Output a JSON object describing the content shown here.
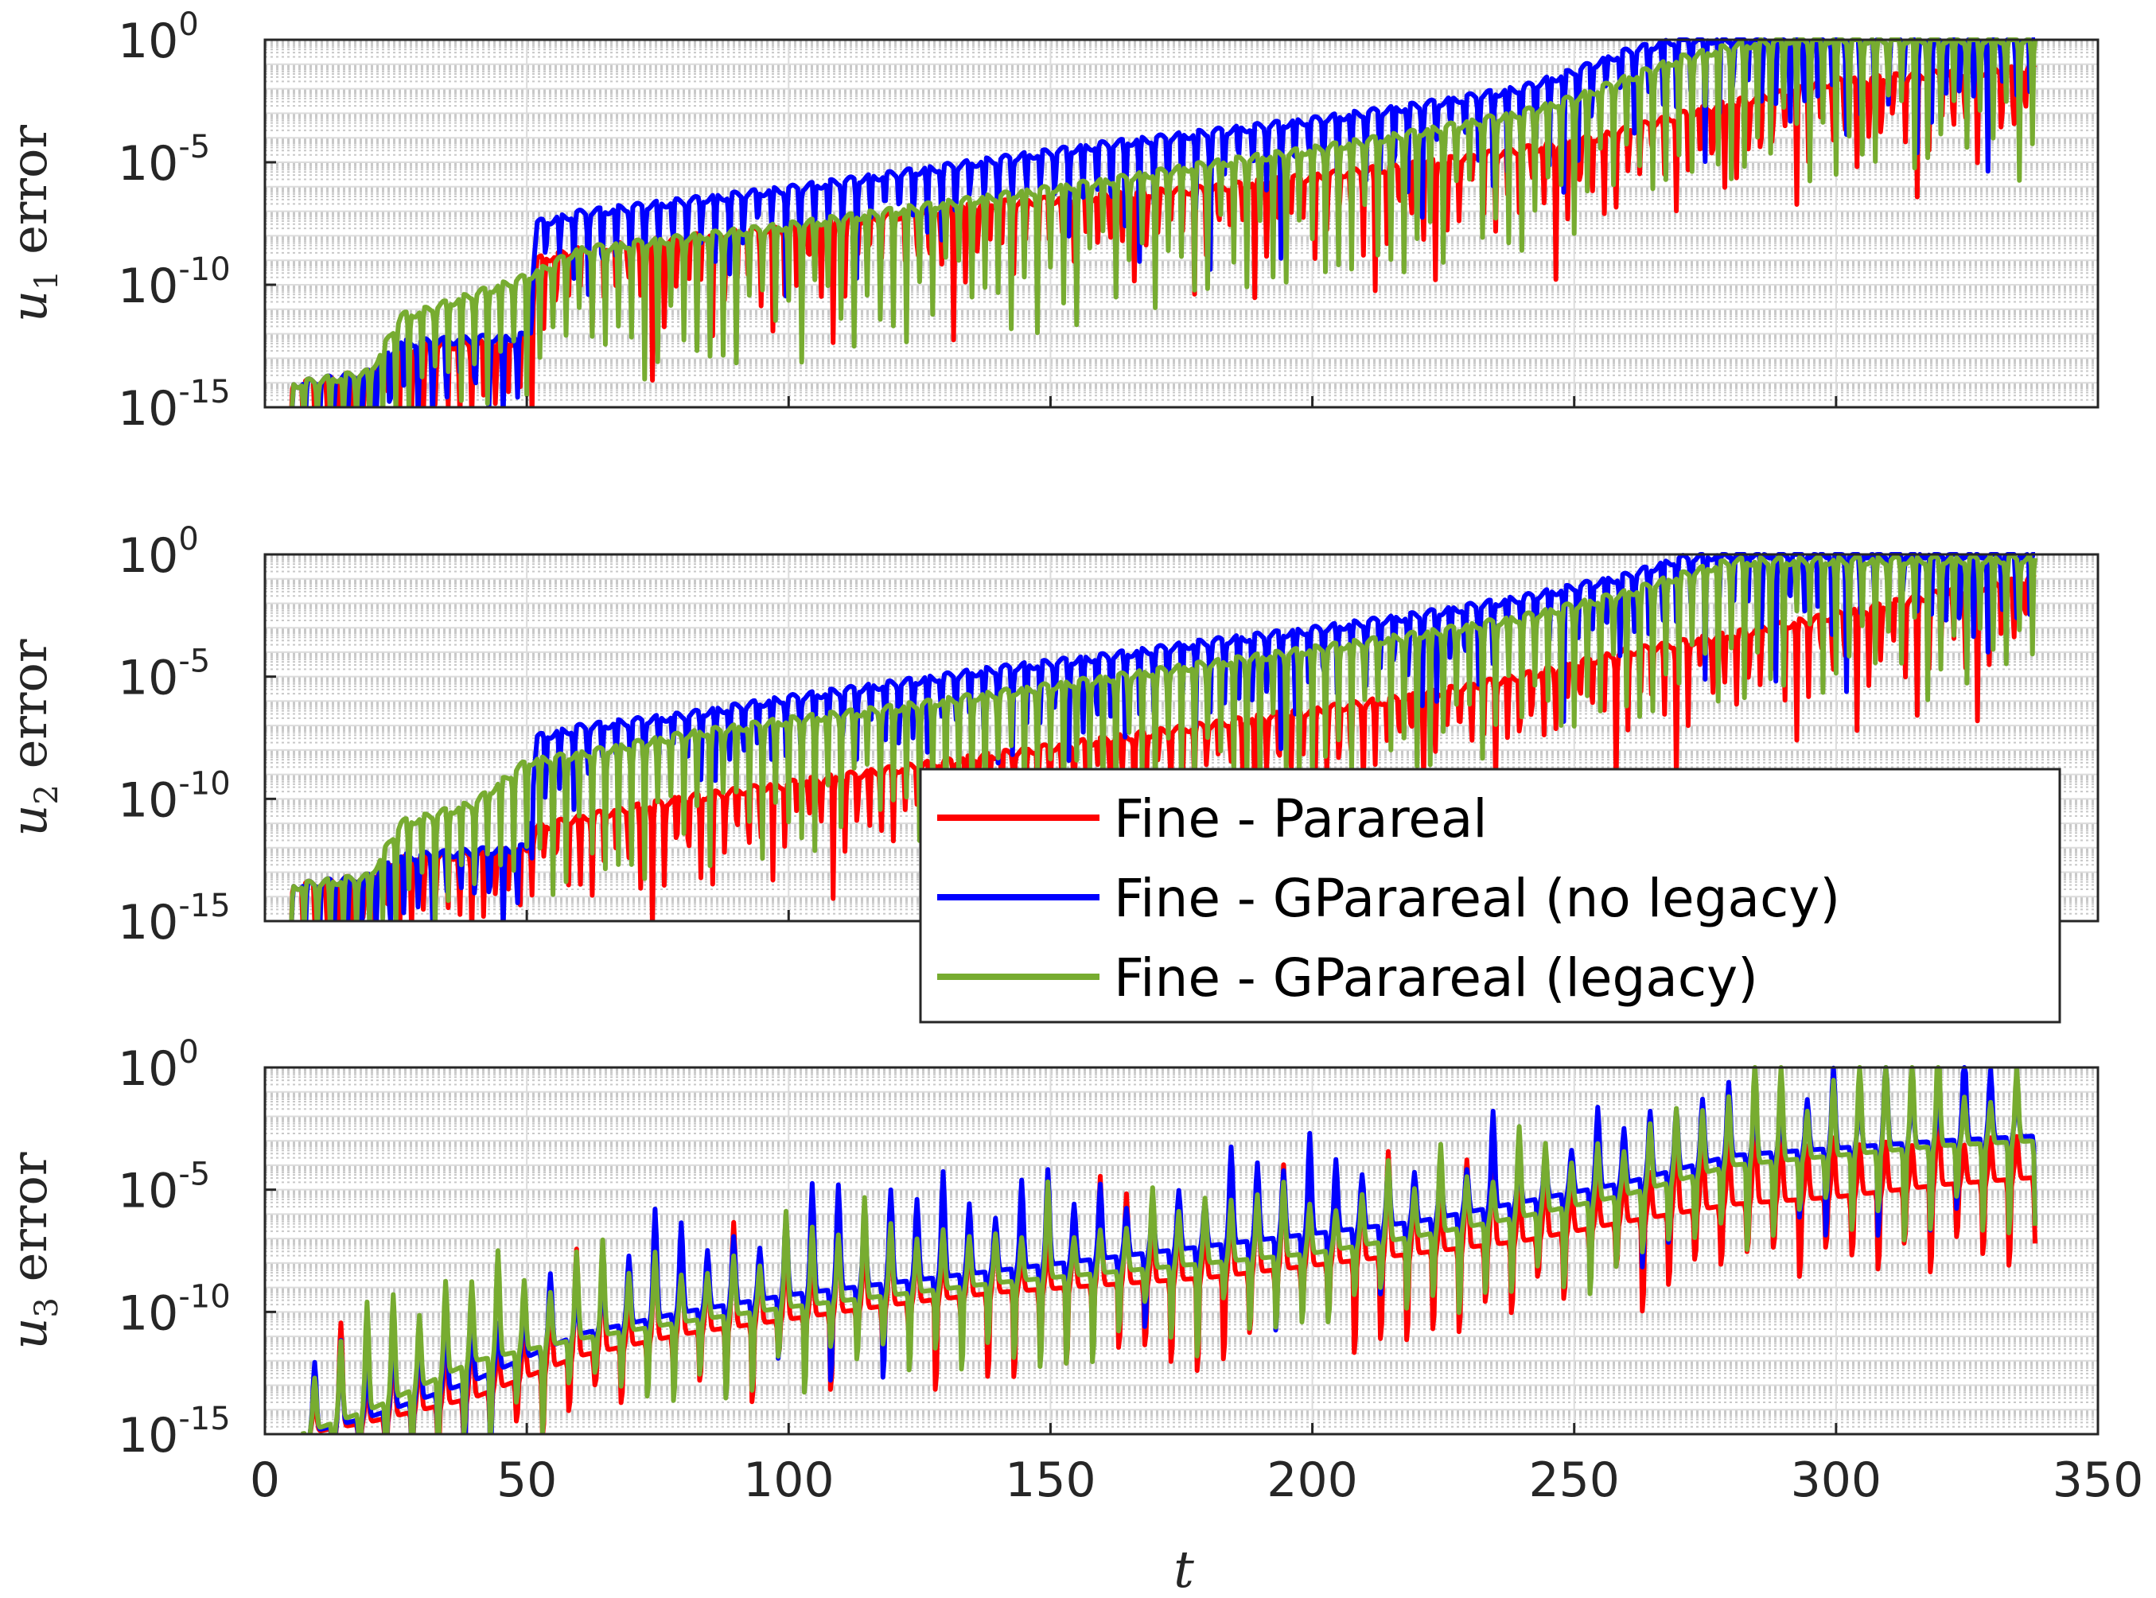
{
  "chart_data": [
    {
      "type": "line",
      "panel": "top",
      "ylabel_var": "u",
      "ylabel_sub": "1",
      "ylabel_word": "error",
      "yscale": "log",
      "ylim_exp": [
        -15,
        0
      ],
      "xlim": [
        0,
        350
      ],
      "grid": true,
      "series": [
        {
          "name": "Fine - Parareal",
          "color": "#ff0000",
          "x": [
            5,
            20,
            26,
            50,
            52,
            60,
            80,
            100,
            120,
            140,
            160,
            180,
            200,
            220,
            240,
            250,
            260,
            270,
            280,
            290,
            300,
            320,
            338
          ],
          "log10_values": [
            -14.1,
            -13.6,
            -12.6,
            -12.3,
            -9.0,
            -8.6,
            -8.1,
            -7.7,
            -7.2,
            -6.7,
            -6.4,
            -6.1,
            -5.6,
            -5.1,
            -4.5,
            -4.2,
            -3.7,
            -3.1,
            -2.6,
            -2.2,
            -1.7,
            -1.4,
            -1.2
          ],
          "dip_spacing": 2.3
        },
        {
          "name": "Fine - GParareal (no legacy)",
          "color": "#0000ff",
          "x": [
            5,
            20,
            26,
            50,
            52,
            60,
            80,
            100,
            120,
            140,
            160,
            180,
            200,
            220,
            240,
            250,
            260,
            270,
            280,
            290,
            300,
            320,
            338
          ],
          "log10_values": [
            -14.1,
            -13.6,
            -12.4,
            -12.1,
            -7.5,
            -7.1,
            -6.6,
            -6.1,
            -5.5,
            -4.9,
            -4.3,
            -3.8,
            -3.3,
            -2.7,
            -2.0,
            -1.3,
            -0.5,
            0,
            0,
            0,
            0,
            0,
            0
          ],
          "dip_spacing": 2.7
        },
        {
          "name": "Fine - GParareal (legacy)",
          "color": "#77ac30",
          "x": [
            5,
            20,
            26,
            30,
            40,
            50,
            60,
            80,
            100,
            120,
            140,
            160,
            180,
            200,
            220,
            240,
            250,
            260,
            270,
            280,
            290,
            300,
            320,
            338
          ],
          "log10_values": [
            -14.1,
            -13.6,
            -11.3,
            -11.1,
            -10.4,
            -9.7,
            -8.6,
            -8.1,
            -7.6,
            -7.0,
            -6.4,
            -5.8,
            -5.1,
            -4.5,
            -3.8,
            -3.0,
            -2.4,
            -1.6,
            -0.8,
            -0.3,
            0,
            0,
            0,
            0
          ],
          "dip_spacing": 2.5
        }
      ]
    },
    {
      "type": "line",
      "panel": "middle",
      "ylabel_var": "u",
      "ylabel_sub": "2",
      "ylabel_word": "error",
      "yscale": "log",
      "ylim_exp": [
        -15,
        0
      ],
      "xlim": [
        0,
        350
      ],
      "grid": true,
      "series": [
        {
          "name": "Fine - Parareal",
          "color": "#ff0000",
          "x": [
            5,
            20,
            26,
            50,
            52,
            60,
            80,
            100,
            120,
            140,
            160,
            180,
            200,
            220,
            240,
            260,
            280,
            300,
            320,
            338
          ],
          "log10_values": [
            -13.6,
            -13.2,
            -12.5,
            -12.1,
            -11.2,
            -10.8,
            -10.0,
            -9.4,
            -8.8,
            -8.2,
            -7.6,
            -7.0,
            -6.4,
            -5.8,
            -5.0,
            -4.0,
            -3.3,
            -2.5,
            -1.6,
            -1.0
          ],
          "dip_spacing": 2.3
        },
        {
          "name": "Fine - GParareal (no legacy)",
          "color": "#0000ff",
          "x": [
            5,
            20,
            26,
            50,
            52,
            60,
            80,
            100,
            120,
            140,
            160,
            180,
            200,
            220,
            240,
            260,
            270,
            280,
            338
          ],
          "log10_values": [
            -13.6,
            -13.2,
            -12.4,
            -12.0,
            -7.5,
            -7.1,
            -6.6,
            -5.9,
            -5.3,
            -4.7,
            -4.2,
            -3.6,
            -3.1,
            -2.5,
            -1.8,
            -0.9,
            -0.2,
            0,
            0
          ],
          "dip_spacing": 2.7
        },
        {
          "name": "Fine - GParareal (legacy)",
          "color": "#77ac30",
          "x": [
            5,
            20,
            26,
            30,
            40,
            50,
            60,
            80,
            100,
            120,
            140,
            160,
            180,
            200,
            220,
            240,
            260,
            270,
            280,
            338
          ],
          "log10_values": [
            -13.6,
            -13.2,
            -11.0,
            -10.8,
            -10.2,
            -8.5,
            -8.2,
            -7.4,
            -6.8,
            -6.3,
            -5.7,
            -5.1,
            -4.5,
            -3.9,
            -3.3,
            -2.6,
            -1.6,
            -0.9,
            -0.3,
            -0.2
          ],
          "dip_spacing": 2.5
        }
      ]
    },
    {
      "type": "line",
      "panel": "bottom",
      "ylabel_var": "u",
      "ylabel_sub": "3",
      "ylabel_word": "error",
      "yscale": "log",
      "ylim_exp": [
        -15,
        0
      ],
      "xlim": [
        0,
        350
      ],
      "grid": true,
      "series": [
        {
          "name": "Fine - Parareal",
          "color": "#ff0000",
          "x": [
            7,
            20,
            40,
            60,
            80,
            100,
            120,
            140,
            160,
            180,
            200,
            220,
            240,
            260,
            280,
            300,
            320,
            338
          ],
          "log10_values": [
            -15,
            -14.5,
            -13.5,
            -11.8,
            -10.9,
            -10.3,
            -9.7,
            -9.2,
            -8.9,
            -8.6,
            -8.1,
            -7.6,
            -7.1,
            -6.3,
            -5.6,
            -5.3,
            -4.8,
            -4.5
          ],
          "dip_spacing": 5.0
        },
        {
          "name": "Fine - GParareal (no legacy)",
          "color": "#0000ff",
          "x": [
            7,
            20,
            40,
            60,
            80,
            100,
            120,
            140,
            160,
            180,
            200,
            220,
            240,
            260,
            280,
            300,
            320,
            338
          ],
          "log10_values": [
            -15,
            -14.3,
            -12.8,
            -10.9,
            -10.0,
            -9.3,
            -8.8,
            -8.3,
            -7.8,
            -7.3,
            -6.8,
            -6.3,
            -5.5,
            -4.7,
            -3.6,
            -3.3,
            -3.0,
            -2.8
          ],
          "dip_spacing": 5.0
        },
        {
          "name": "Fine - GParareal (legacy)",
          "color": "#77ac30",
          "x": [
            7,
            20,
            40,
            60,
            80,
            100,
            120,
            140,
            160,
            180,
            200,
            220,
            240,
            260,
            280,
            300,
            320,
            338
          ],
          "log10_values": [
            -15,
            -14.0,
            -12.0,
            -11.1,
            -10.4,
            -9.8,
            -9.3,
            -8.8,
            -8.4,
            -8.0,
            -7.6,
            -6.9,
            -6.1,
            -5.2,
            -4.0,
            -3.6,
            -3.2,
            -3.0
          ],
          "dip_spacing": 5.0
        }
      ]
    }
  ],
  "axes": {
    "xlabel": "t",
    "x_ticks": [
      "0",
      "50",
      "100",
      "150",
      "200",
      "250",
      "300",
      "350"
    ],
    "x_tick_values": [
      0,
      50,
      100,
      150,
      200,
      250,
      300,
      350
    ],
    "y_tick_base": "10",
    "y_tick_exponents": [
      "0",
      "-5",
      "-10",
      "-15"
    ]
  },
  "legend": {
    "position": "center-right",
    "entries": [
      {
        "label": "Fine - Parareal",
        "color": "#ff0000"
      },
      {
        "label": "Fine - GParareal (no legacy)",
        "color": "#0000ff"
      },
      {
        "label": "Fine - GParareal (legacy)",
        "color": "#77ac30"
      }
    ]
  }
}
